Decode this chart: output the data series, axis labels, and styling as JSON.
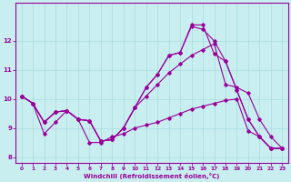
{
  "xlabel": "Windchill (Refroidissement éolien,°C)",
  "background_color": "#c8eef0",
  "grid_color": "#a8dce0",
  "line_color": "#990099",
  "xlim": [
    -0.5,
    23.5
  ],
  "ylim": [
    7.8,
    13.3
  ],
  "yticks": [
    8,
    9,
    10,
    11,
    12
  ],
  "xticks": [
    0,
    1,
    2,
    3,
    4,
    5,
    6,
    7,
    8,
    9,
    10,
    11,
    12,
    13,
    14,
    15,
    16,
    17,
    18,
    19,
    20,
    21,
    22,
    23
  ],
  "series": {
    "line1_x": [
      0,
      1,
      2,
      3,
      4,
      5,
      6,
      7,
      8,
      9,
      10,
      11,
      12,
      13,
      14,
      15,
      16,
      17,
      18,
      19,
      20,
      21,
      22,
      23
    ],
    "line1_y": [
      10.1,
      9.85,
      9.2,
      9.55,
      9.6,
      9.3,
      9.25,
      8.55,
      8.6,
      9.0,
      9.7,
      10.4,
      10.85,
      11.5,
      11.6,
      12.5,
      12.4,
      12.0,
      11.3,
      10.3,
      9.3,
      8.7,
      8.3,
      8.3
    ],
    "line2_x": [
      0,
      1,
      2,
      3,
      4,
      5,
      6,
      7,
      8,
      9,
      10,
      11,
      12,
      13,
      14,
      15,
      16,
      17,
      18,
      19,
      20,
      21,
      22,
      23
    ],
    "line2_y": [
      10.1,
      9.85,
      9.2,
      9.55,
      9.6,
      9.3,
      9.25,
      8.55,
      8.6,
      9.0,
      9.7,
      10.4,
      10.85,
      11.5,
      11.6,
      12.55,
      12.55,
      11.55,
      11.3,
      10.3,
      9.3,
      8.7,
      8.3,
      8.3
    ],
    "line3_x": [
      0,
      1,
      2,
      3,
      4,
      5,
      6,
      7,
      8,
      9,
      10,
      11,
      12,
      13,
      14,
      15,
      16,
      17,
      18,
      19,
      20,
      21,
      22,
      23
    ],
    "line3_y": [
      10.1,
      9.85,
      9.2,
      9.55,
      9.6,
      9.3,
      9.25,
      8.55,
      8.6,
      9.0,
      9.7,
      10.1,
      10.5,
      10.9,
      11.2,
      11.5,
      11.7,
      11.9,
      10.5,
      10.4,
      10.2,
      9.3,
      8.7,
      8.3
    ],
    "line4_x": [
      0,
      1,
      2,
      3,
      4,
      5,
      6,
      7,
      8,
      9,
      10,
      11,
      12,
      13,
      14,
      15,
      16,
      17,
      18,
      19,
      20,
      21,
      22,
      23
    ],
    "line4_y": [
      10.1,
      9.85,
      8.8,
      9.2,
      9.6,
      9.3,
      8.5,
      8.5,
      8.7,
      8.8,
      9.0,
      9.1,
      9.2,
      9.35,
      9.5,
      9.65,
      9.75,
      9.85,
      9.95,
      10.0,
      8.9,
      8.7,
      8.3,
      8.3
    ]
  }
}
